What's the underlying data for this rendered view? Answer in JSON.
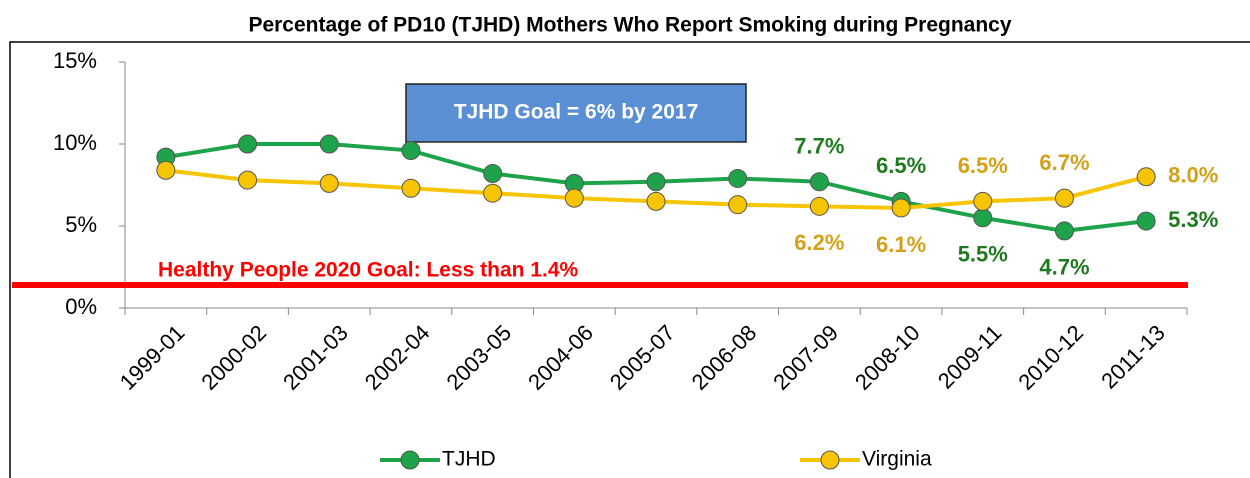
{
  "chart_data": {
    "type": "line",
    "title": "Percentage of PD10 (TJHD) Mothers Who Report Smoking during Pregnancy",
    "categories": [
      "1999-01",
      "2000-02",
      "2001-03",
      "2002-04",
      "2003-05",
      "2004-06",
      "2005-07",
      "2006-08",
      "2007-09",
      "2008-10",
      "2009-11",
      "2010-12",
      "2011-13"
    ],
    "series": [
      {
        "name": "TJHD",
        "color": "#1fa34a",
        "label_color": "#1f7a1f",
        "values": [
          9.2,
          10.0,
          10.0,
          9.6,
          8.2,
          7.6,
          7.7,
          7.9,
          7.7,
          6.5,
          5.5,
          4.7,
          5.3
        ],
        "value_labels": [
          null,
          null,
          null,
          null,
          null,
          null,
          null,
          null,
          "7.7%",
          "6.5%",
          "5.5%",
          "4.7%",
          "5.3%"
        ]
      },
      {
        "name": "Virginia",
        "color": "#f7c500",
        "label_color": "#d4a017",
        "values": [
          8.4,
          7.8,
          7.6,
          7.3,
          7.0,
          6.7,
          6.5,
          6.3,
          6.2,
          6.1,
          6.5,
          6.7,
          8.0
        ],
        "value_labels": [
          null,
          null,
          null,
          null,
          null,
          null,
          null,
          null,
          "6.2%",
          "6.1%",
          "6.5%",
          "6.7%",
          "8.0%"
        ]
      }
    ],
    "ylim": [
      0,
      15
    ],
    "yticks": [
      {
        "value": 0,
        "label": "0%"
      },
      {
        "value": 5,
        "label": "5%"
      },
      {
        "value": 10,
        "label": "10%"
      },
      {
        "value": 15,
        "label": "15%"
      }
    ],
    "reference_line": {
      "value": 1.4,
      "label": "Healthy People 2020 Goal: Less than 1.4%",
      "color": "#ff0000"
    },
    "annotation": "TJHD Goal = 6% by 2017",
    "legend": "bottom"
  }
}
